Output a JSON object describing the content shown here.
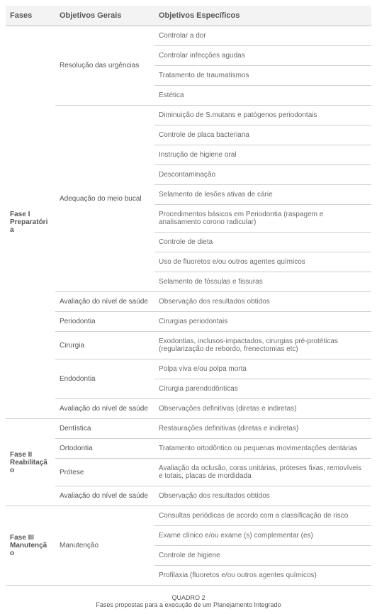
{
  "style": {
    "header_bg": "#f3f3f3",
    "row_border_color": "#cfcfcf",
    "header_border_color": "#bfbfbf",
    "text_color": "#555555",
    "specific_text_color": "#6a6a6a",
    "font_size_body": 10,
    "font_size_header": 11,
    "font_size_caption": 9,
    "col_widths": [
      "70px",
      "140px",
      "auto"
    ]
  },
  "headers": {
    "phases": "Fases",
    "general": "Objetivos Gerais",
    "specific": "Objetivos Específicos"
  },
  "phases": [
    {
      "label": "Fase I Preparatória",
      "groups": [
        {
          "general": "Resolução das urgências",
          "specifics": [
            "Controlar a dor",
            "Controlar infecções agudas",
            "Tratamento de traumatismos",
            "Estética"
          ]
        },
        {
          "general": "Adequação do meio bucal",
          "specifics": [
            "Diminuição de S.mutans e patógenos periodontais",
            "Controle de placa bacteriana",
            "Instrução de higiene oral",
            "Descontaminação",
            "Selamento de lesões ativas de cárie",
            "Procedimentos básicos em Periodontia (raspagem e analisamento corono radicular)",
            "Controle de dieta",
            "Uso de fluoretos e/ou outros agentes químicos",
            "Selamento de fóssulas e fissuras"
          ]
        },
        {
          "general": "Avaliação do nível de saúde",
          "specifics": [
            "Observação dos resultados obtidos"
          ]
        },
        {
          "general": "Periodontia",
          "specifics": [
            "Cirurgias periodontais"
          ]
        },
        {
          "general": "Cirurgia",
          "specifics": [
            "Exodontias, inclusos-impactados, cirurgias pré-protéticas (regularização de rebordo, frenectomias etc)"
          ]
        },
        {
          "general": "Endodontia",
          "specifics": [
            "Polpa viva e/ou polpa morta",
            "Cirurgia parendodônticas"
          ]
        },
        {
          "general": "Avaliação do nível de saúde",
          "specifics": [
            "Observações definitivas (diretas e indiretas)"
          ]
        }
      ]
    },
    {
      "label": "Fase II Reabilitação",
      "groups": [
        {
          "general": "Dentística",
          "specifics": [
            "Restaurações definitivas (diretas e indiretas)"
          ]
        },
        {
          "general": "Ortodontia",
          "specifics": [
            "Tratamento ortodôntico ou pequenas movimentações dentárias"
          ]
        },
        {
          "general": "Prótese",
          "specifics": [
            "Avaliação da oclusão, coras unitárias, próteses fixas, removíveis e totais, placas de mordidada"
          ]
        },
        {
          "general": "Avaliação do nível de saúde",
          "specifics": [
            "Observação dos resultados obtidos"
          ]
        }
      ]
    },
    {
      "label": "Fase III Manutenção",
      "groups": [
        {
          "general": "Manutenção",
          "specifics": [
            "Consultas periódicas de acordo com a classificação de risco",
            "Exame clínico e/ou exame (s) complementar (es)",
            "Controle de higiene",
            "Profilaxia (fluoretos e/ou outros agentes químicos)"
          ]
        }
      ]
    }
  ],
  "caption": {
    "title": "QUADRO 2",
    "subtitle": "Fases propostas para a execução de um Planejamento Integrado"
  }
}
